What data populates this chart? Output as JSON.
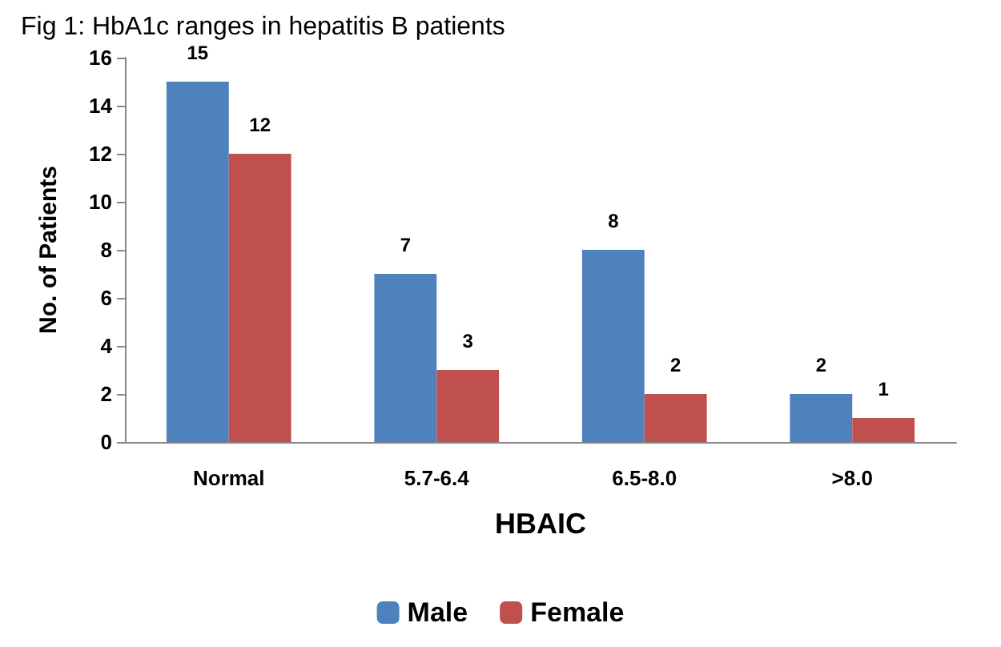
{
  "chart_data": {
    "type": "bar",
    "title": "Fig 1: HbA1c ranges in hepatitis B patients",
    "xlabel": "HBAIC",
    "ylabel": "No. of Patients",
    "categories": [
      "Normal",
      "5.7-6.4",
      "6.5-8.0",
      ">8.0"
    ],
    "series": [
      {
        "name": "Male",
        "color": "#4f81bd",
        "values": [
          15,
          7,
          8,
          2
        ]
      },
      {
        "name": "Female",
        "color": "#c0504d",
        "values": [
          12,
          3,
          2,
          1
        ]
      }
    ],
    "ylim": [
      0,
      16
    ],
    "yticks": [
      0,
      2,
      4,
      6,
      8,
      10,
      12,
      14,
      16
    ],
    "grid": false,
    "legend": "bottom",
    "data_labels": true
  }
}
